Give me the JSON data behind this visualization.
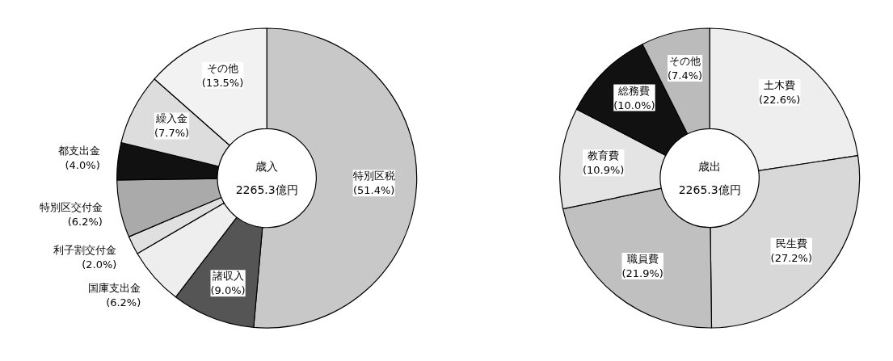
{
  "chart_data": [
    {
      "type": "donut",
      "categories": [
        "特別区税",
        "諸収入",
        "国庫支出金",
        "利子割交付金",
        "特別区交付金",
        "都支出金",
        "繰入金",
        "その他"
      ],
      "values": [
        51.4,
        9.0,
        6.2,
        2.0,
        6.2,
        4.0,
        7.7,
        13.5
      ],
      "value_labels": [
        "(51.4%)",
        "(9.0%)",
        "(6.2%)",
        "(2.0%)",
        "(6.2%)",
        "(4.0%)",
        "(7.7%)",
        "(13.5%)"
      ],
      "colors": [
        "#c8c8c8",
        "#555555",
        "#eeeeee",
        "#e0e0e0",
        "#aaaaaa",
        "#111111",
        "#dddddd",
        "#f2f2f2"
      ],
      "annotations": [
        "歳入",
        "2265.3億円"
      ],
      "legend": false
    },
    {
      "type": "donut",
      "categories": [
        "土木費",
        "民生費",
        "職員費",
        "教育費",
        "総務費",
        "その他"
      ],
      "values": [
        22.6,
        27.2,
        21.9,
        10.9,
        10.0,
        7.4
      ],
      "value_labels": [
        "(22.6%)",
        "(27.2%)",
        "(21.9%)",
        "(10.9%)",
        "(10.0%)",
        "(7.4%)"
      ],
      "colors": [
        "#eeeeee",
        "#d8d8d8",
        "#c0c0c0",
        "#e4e4e4",
        "#111111",
        "#bbbbbb"
      ],
      "annotations": [
        "歳出",
        "2265.3億円"
      ],
      "legend": false
    }
  ]
}
